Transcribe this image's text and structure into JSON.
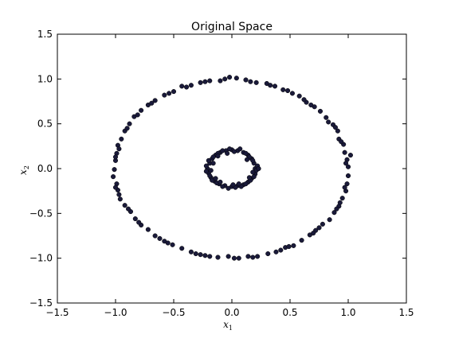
{
  "chart_data": {
    "type": "scatter",
    "title": "Original Space",
    "xlabel": "x",
    "xlabel_subscript": "1",
    "ylabel": "x",
    "ylabel_subscript": "2",
    "xlim": [
      -1.5,
      1.5
    ],
    "ylim": [
      -1.5,
      1.5
    ],
    "xticks": [
      -1.5,
      -1.0,
      -0.5,
      0.0,
      0.5,
      1.0,
      1.5
    ],
    "yticks": [
      -1.5,
      -1.0,
      -0.5,
      0.0,
      0.5,
      1.0,
      1.5
    ],
    "xtick_labels": [
      "−1.5",
      "−1.0",
      "−0.5",
      "0.0",
      "0.5",
      "1.0",
      "1.5"
    ],
    "ytick_labels": [
      "−1.5",
      "−1.0",
      "−0.5",
      "0.0",
      "0.5",
      "1.0",
      "1.5"
    ],
    "grid": false,
    "point_color": "#1a1a3a",
    "series": [
      {
        "points": [
          [
            1.0,
            0.02
          ],
          [
            0.99,
            0.1
          ],
          [
            0.97,
            0.18
          ],
          [
            0.96,
            0.27
          ],
          [
            0.92,
            0.33
          ],
          [
            0.91,
            0.42
          ],
          [
            0.87,
            0.49
          ],
          [
            0.81,
            0.57
          ],
          [
            0.76,
            0.64
          ],
          [
            0.71,
            0.69
          ],
          [
            0.64,
            0.74
          ],
          [
            0.58,
            0.81
          ],
          [
            0.52,
            0.84
          ],
          [
            0.44,
            0.88
          ],
          [
            0.37,
            0.92
          ],
          [
            0.3,
            0.95
          ],
          [
            0.21,
            0.96
          ],
          [
            0.12,
            0.99
          ],
          [
            0.04,
            1.01
          ],
          [
            -0.02,
            1.02
          ],
          [
            -0.1,
            0.98
          ],
          [
            -0.19,
            0.98
          ],
          [
            -0.27,
            0.96
          ],
          [
            -0.35,
            0.93
          ],
          [
            -0.43,
            0.92
          ],
          [
            -0.5,
            0.86
          ],
          [
            -0.58,
            0.82
          ],
          [
            -0.66,
            0.76
          ],
          [
            -0.72,
            0.71
          ],
          [
            -0.78,
            0.65
          ],
          [
            -0.84,
            0.58
          ],
          [
            -0.88,
            0.5
          ],
          [
            -0.92,
            0.42
          ],
          [
            -0.95,
            0.33
          ],
          [
            -0.98,
            0.26
          ],
          [
            -0.99,
            0.17
          ],
          [
            -1.0,
            0.09
          ],
          [
            -1.01,
            -0.01
          ],
          [
            -1.02,
            -0.09
          ],
          [
            -0.99,
            -0.17
          ],
          [
            -0.98,
            -0.24
          ],
          [
            -0.96,
            -0.34
          ],
          [
            -0.92,
            -0.41
          ],
          [
            -0.87,
            -0.48
          ],
          [
            -0.83,
            -0.56
          ],
          [
            -0.78,
            -0.63
          ],
          [
            -0.72,
            -0.68
          ],
          [
            -0.66,
            -0.75
          ],
          [
            -0.58,
            -0.81
          ],
          [
            -0.51,
            -0.85
          ],
          [
            -0.43,
            -0.89
          ],
          [
            -0.35,
            -0.93
          ],
          [
            -0.27,
            -0.96
          ],
          [
            -0.19,
            -0.98
          ],
          [
            -0.12,
            -0.99
          ],
          [
            -0.03,
            -0.98
          ],
          [
            0.06,
            -1.0
          ],
          [
            0.14,
            -0.98
          ],
          [
            0.22,
            -0.98
          ],
          [
            0.31,
            -0.95
          ],
          [
            0.38,
            -0.93
          ],
          [
            0.46,
            -0.88
          ],
          [
            0.53,
            -0.86
          ],
          [
            0.6,
            -0.8
          ],
          [
            0.67,
            -0.74
          ],
          [
            0.72,
            -0.69
          ],
          [
            0.78,
            -0.62
          ],
          [
            0.84,
            -0.57
          ],
          [
            0.88,
            -0.49
          ],
          [
            0.92,
            -0.42
          ],
          [
            0.95,
            -0.33
          ],
          [
            0.98,
            -0.25
          ],
          [
            0.99,
            -0.17
          ],
          [
            1.0,
            -0.08
          ],
          [
            0.98,
            0.06
          ],
          [
            0.94,
            0.3
          ],
          [
            0.83,
            0.52
          ],
          [
            0.62,
            0.77
          ],
          [
            0.33,
            0.93
          ],
          [
            -0.06,
            1.0
          ],
          [
            -0.39,
            0.91
          ],
          [
            -0.69,
            0.73
          ],
          [
            -0.9,
            0.45
          ],
          [
            -1.0,
            0.13
          ],
          [
            -0.97,
            -0.29
          ],
          [
            -0.8,
            -0.6
          ],
          [
            -0.55,
            -0.83
          ],
          [
            -0.23,
            -0.97
          ],
          [
            0.18,
            -0.99
          ],
          [
            0.49,
            -0.87
          ],
          [
            0.75,
            -0.66
          ],
          [
            0.93,
            -0.38
          ],
          [
            1.02,
            0.15
          ],
          [
            0.89,
            0.46
          ],
          [
            0.68,
            0.71
          ],
          [
            0.48,
            0.87
          ],
          [
            0.16,
            0.97
          ],
          [
            -0.23,
            0.97
          ],
          [
            -0.54,
            0.84
          ],
          [
            -0.81,
            0.6
          ],
          [
            -0.97,
            0.22
          ],
          [
            -1.0,
            -0.21
          ],
          [
            -0.89,
            -0.45
          ],
          [
            -0.62,
            -0.78
          ],
          [
            -0.31,
            -0.95
          ],
          [
            0.02,
            -1.0
          ],
          [
            0.42,
            -0.91
          ],
          [
            0.7,
            -0.72
          ],
          [
            0.9,
            -0.45
          ],
          [
            0.97,
            -0.21
          ]
        ]
      },
      {
        "points": [
          [
            0.2,
            0.0
          ],
          [
            0.19,
            0.06
          ],
          [
            0.17,
            0.11
          ],
          [
            0.14,
            0.15
          ],
          [
            0.1,
            0.18
          ],
          [
            0.05,
            0.2
          ],
          [
            0.0,
            0.21
          ],
          [
            -0.05,
            0.2
          ],
          [
            -0.1,
            0.18
          ],
          [
            -0.14,
            0.15
          ],
          [
            -0.17,
            0.11
          ],
          [
            -0.19,
            0.06
          ],
          [
            -0.21,
            0.0
          ],
          [
            -0.2,
            -0.05
          ],
          [
            -0.18,
            -0.1
          ],
          [
            -0.15,
            -0.14
          ],
          [
            -0.11,
            -0.17
          ],
          [
            -0.06,
            -0.19
          ],
          [
            0.0,
            -0.2
          ],
          [
            0.05,
            -0.19
          ],
          [
            0.1,
            -0.18
          ],
          [
            0.14,
            -0.15
          ],
          [
            0.17,
            -0.11
          ],
          [
            0.2,
            -0.06
          ],
          [
            0.22,
            0.03
          ],
          [
            0.21,
            -0.02
          ],
          [
            0.18,
            0.09
          ],
          [
            0.12,
            0.17
          ],
          [
            0.07,
            0.22
          ],
          [
            -0.02,
            0.22
          ],
          [
            -0.08,
            0.2
          ],
          [
            -0.12,
            0.17
          ],
          [
            -0.16,
            0.13
          ],
          [
            -0.2,
            0.09
          ],
          [
            -0.22,
            0.03
          ],
          [
            -0.22,
            -0.03
          ],
          [
            -0.19,
            -0.08
          ],
          [
            -0.17,
            -0.13
          ],
          [
            -0.13,
            -0.16
          ],
          [
            -0.08,
            -0.2
          ],
          [
            -0.03,
            -0.22
          ],
          [
            0.03,
            -0.21
          ],
          [
            0.08,
            -0.2
          ],
          [
            0.12,
            -0.17
          ],
          [
            0.16,
            -0.13
          ],
          [
            0.19,
            -0.09
          ],
          [
            0.23,
            0.0
          ],
          [
            0.15,
            0.13
          ],
          [
            0.02,
            0.19
          ],
          [
            -0.12,
            0.14
          ],
          [
            -0.18,
            -0.02
          ],
          [
            -0.1,
            -0.15
          ],
          [
            0.06,
            -0.17
          ],
          [
            0.18,
            -0.04
          ],
          [
            0.13,
            0.1
          ],
          [
            -0.04,
            0.17
          ],
          [
            -0.16,
            0.06
          ],
          [
            -0.14,
            -0.11
          ],
          [
            0.01,
            -0.18
          ],
          [
            0.15,
            -0.1
          ]
        ]
      }
    ]
  }
}
